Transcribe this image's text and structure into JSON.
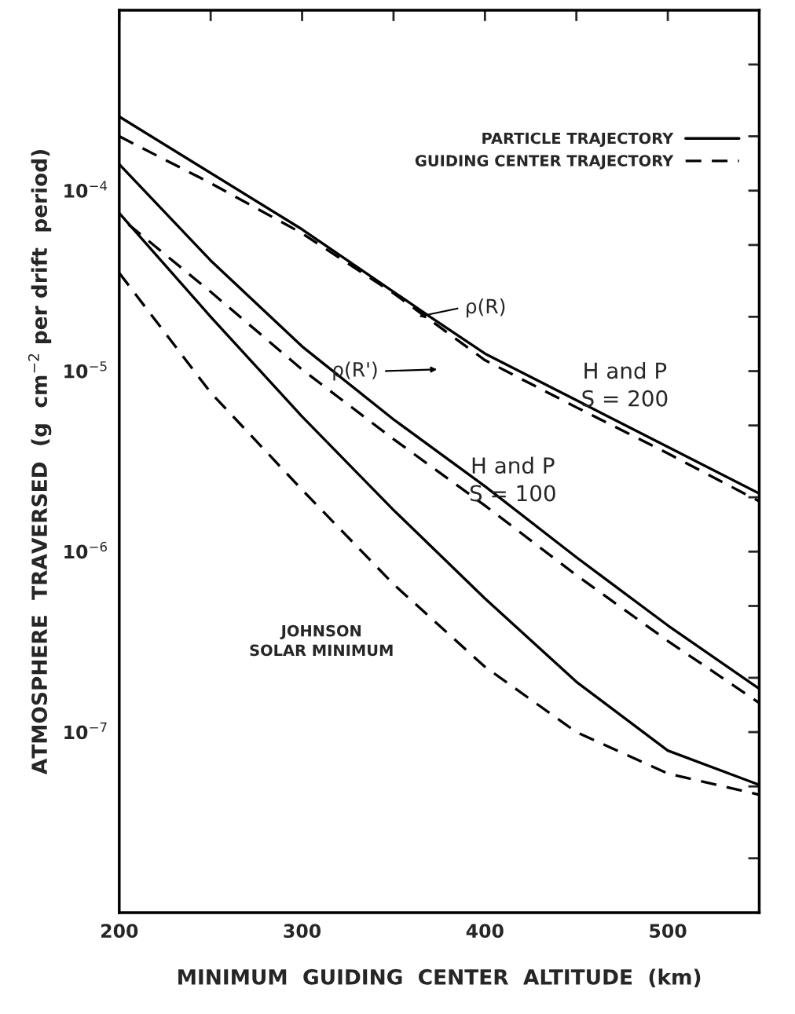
{
  "chart_data": {
    "type": "line",
    "xlabel": "MINIMUM  GUIDING  CENTER  ALTITUDE  (km)",
    "ylabel": "ATMOSPHERE  TRAVERSED  (g  cm$^{−2}$ per drift  period)",
    "log": "y",
    "grid": false,
    "legend": "top right",
    "xlim": [
      200,
      550
    ],
    "xticks": [
      200,
      {
        "value": 250,
        "label": null
      },
      300,
      {
        "value": 350,
        "label": null
      },
      400,
      {
        "value": 450,
        "label": null
      },
      500,
      {
        "value": 550,
        "label": null
      }
    ],
    "ylim": [
      1e-08,
      0.001
    ],
    "yticks": [
      {
        "value": 2e-08,
        "label": null
      },
      {
        "value": 5e-08,
        "label": null
      },
      {
        "value": 1e-07,
        "label": "10$^{−7}$"
      },
      {
        "value": 2e-07,
        "label": null
      },
      {
        "value": 5e-07,
        "label": null
      },
      {
        "value": 1e-06,
        "label": "10$^{−6}$"
      },
      {
        "value": 2e-06,
        "label": null
      },
      {
        "value": 5e-06,
        "label": null
      },
      {
        "value": 1e-05,
        "label": "10$^{−5}$"
      },
      {
        "value": 2e-05,
        "label": null
      },
      {
        "value": 5e-05,
        "label": null
      },
      {
        "value": 0.0001,
        "label": "10$^{−4}$"
      },
      {
        "value": 0.0002,
        "label": null
      },
      {
        "value": 0.0005,
        "label": null
      }
    ],
    "x": [
      200,
      250,
      300,
      350,
      400,
      450,
      500,
      550
    ],
    "series": [
      {
        "name": "PARTICLE TRAJECTORY",
        "color": "#000000",
        "line_style": "solid",
        "x": [
          200,
          300,
          370,
          400,
          450,
          500,
          550
        ],
        "values": [
          0.000257,
          6.1e-05,
          2e-05,
          1.25e-05,
          6.9e-06,
          3.8e-06,
          2.1e-06
        ]
      },
      {
        "name": "GUIDING CENTER TRAJECTORY",
        "color": "#000000",
        "line_style": "dashed",
        "values": [
          0.0002,
          0.00011,
          5.8e-05,
          2.7e-05,
          1.15e-05,
          6.3e-06,
          3.5e-06,
          1.9e-06
        ]
      },
      {
        "color": "#000000",
        "line_style": "solid",
        "values": [
          0.00014,
          4.1e-05,
          1.37e-05,
          5.4e-06,
          2.3e-06,
          9.3e-07,
          3.9e-07,
          1.74e-07
        ]
      },
      {
        "color": "#000000",
        "line_style": "dashed",
        "x": [
          205,
          250,
          300,
          350,
          400,
          450,
          500,
          550
        ],
        "values": [
          6.5e-05,
          2.75e-05,
          1.02e-05,
          4.2e-06,
          1.8e-06,
          7.4e-07,
          3.2e-07,
          1.45e-07
        ]
      },
      {
        "color": "#000000",
        "line_style": "solid",
        "values": [
          7.5e-05,
          2e-05,
          5.6e-06,
          1.7e-06,
          5.5e-07,
          1.9e-07,
          7.9e-08,
          5.1e-08
        ]
      },
      {
        "color": "#000000",
        "line_style": "dashed",
        "values": [
          3.5e-05,
          7.6e-06,
          2.2e-06,
          6.6e-07,
          2.3e-07,
          1e-07,
          5.9e-08,
          4.5e-08
        ]
      }
    ],
    "annotations": [
      "ρ(R)",
      "ρ(R')",
      "H and P\nS = 200",
      "H and P\nS = 100",
      "JOHNSON\nSOLAR MINIMUM"
    ]
  }
}
